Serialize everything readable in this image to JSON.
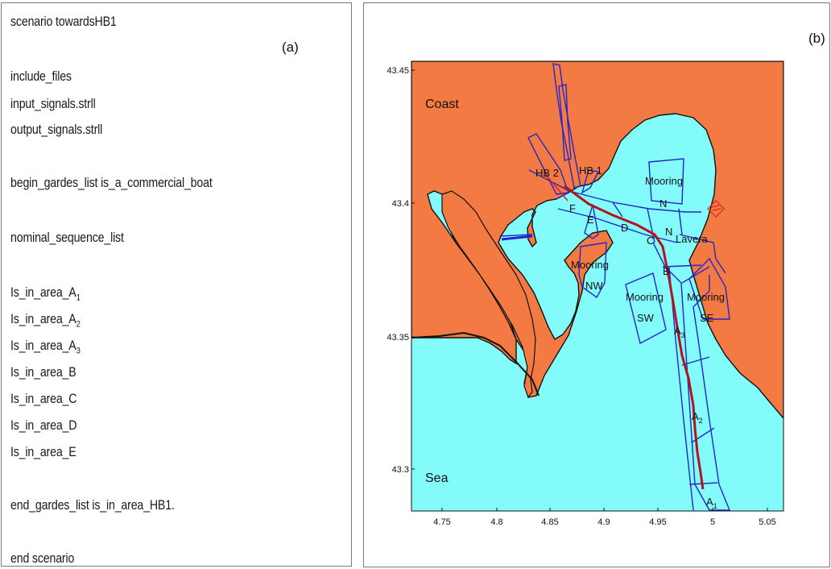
{
  "panel_a": {
    "tag": "(a)",
    "lines": [
      "scenario towardsHB1",
      "include_files",
      "input_signals.strll",
      "output_signals.strll",
      "begin_gardes_list is_a_commercial_boat",
      "nominal_sequence_list",
      "Is_in_area_A",
      "Is_in_area_A",
      "Is_in_area_A",
      "Is_in_area_B",
      "Is_in_area_C",
      "Is_in_area_D",
      "Is_in_area_E",
      "end_gardes_list is_in_area_HB1.",
      "end scenario"
    ],
    "subscripts": [
      "1",
      "2",
      "3"
    ]
  },
  "panel_b": {
    "tag": "(b)",
    "land_label": "Coast",
    "sea_label": "Sea",
    "x_ticks": [
      "4.75",
      "4.8",
      "4.85",
      "4.9",
      "4.95",
      "5",
      "5.05"
    ],
    "y_ticks": [
      "43.45",
      "43.4",
      "43.35",
      "43.3"
    ],
    "area_labels": {
      "hb2": "HB 2",
      "hb1": "HB 1",
      "f": "F",
      "e": "E",
      "d": "D",
      "c": "C",
      "b": "B",
      "n": "N",
      "lavera": "Lavera",
      "mooring_n_1": "Mooring",
      "mooring_n_2": "N",
      "mooring_nw_1": "Mooring",
      "mooring_nw_2": "NW",
      "mooring_sw_1": "Mooring",
      "mooring_sw_2": "SW",
      "mooring_se_1": "Mooring",
      "mooring_se_2": "SE",
      "a3": "A",
      "a2": "A",
      "a1": "A",
      "a3_sub": "3",
      "a2_sub": "2",
      "a1_sub": "1"
    },
    "colors": {
      "land": "#f47a43",
      "sea": "#84fbfb",
      "areas": "#2626c8",
      "trajectory": "#b0141c"
    }
  }
}
